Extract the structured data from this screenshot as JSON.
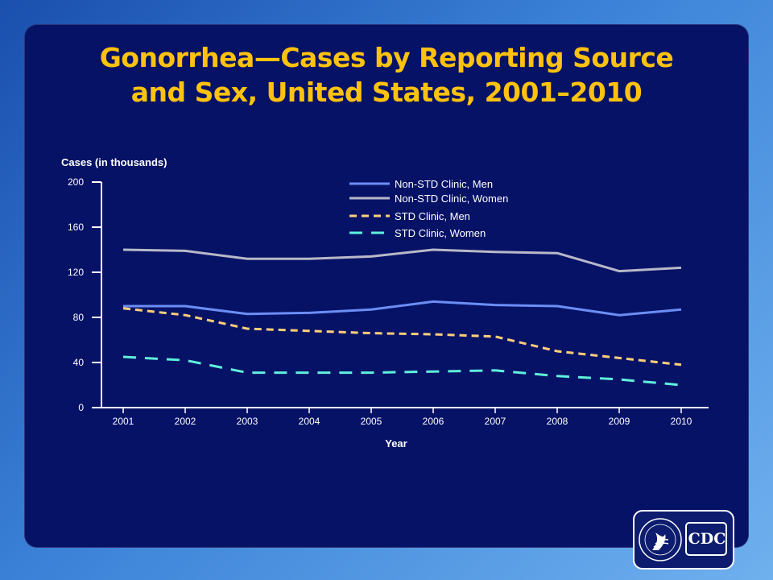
{
  "title_lines": [
    "Gonorrhea—Cases by Reporting Source",
    "and Sex, United States, 2001–2010"
  ],
  "logo": {
    "text": "CDC",
    "icon": "hhs-eagle-icon"
  },
  "colors": {
    "title": "#ffc20e",
    "background": "#061266",
    "text": "#ffffff"
  },
  "chart_data": {
    "type": "line",
    "title": "",
    "xlabel": "Year",
    "ylabel": "Cases (in thousands)",
    "x": [
      2001,
      2002,
      2003,
      2004,
      2005,
      2006,
      2007,
      2008,
      2009,
      2010
    ],
    "x_tick_labels": [
      "2001",
      "2002",
      "2003",
      "2004",
      "2005",
      "2006",
      "2007",
      "2008",
      "2009",
      "2010"
    ],
    "ylim": [
      0,
      200
    ],
    "y_ticks": [
      0,
      40,
      80,
      120,
      160,
      200
    ],
    "grid": false,
    "legend_position": "top-right",
    "series": [
      {
        "name": "Non-STD Clinic, Men",
        "color": "#6b8ef5",
        "dash": "solid",
        "values": [
          90,
          90,
          83,
          84,
          87,
          94,
          91,
          90,
          82,
          87
        ]
      },
      {
        "name": "Non-STD Clinic, Women",
        "color": "#b8b8c8",
        "dash": "solid",
        "values": [
          140,
          139,
          132,
          132,
          134,
          140,
          138,
          137,
          121,
          124
        ]
      },
      {
        "name": "STD Clinic, Men",
        "color": "#ffcf7a",
        "dash": "short",
        "values": [
          88,
          82,
          70,
          68,
          66,
          65,
          63,
          50,
          44,
          38
        ]
      },
      {
        "name": "STD Clinic, Women",
        "color": "#5ff0dc",
        "dash": "long",
        "values": [
          45,
          42,
          31,
          31,
          31,
          32,
          33,
          28,
          25,
          20
        ]
      }
    ]
  }
}
